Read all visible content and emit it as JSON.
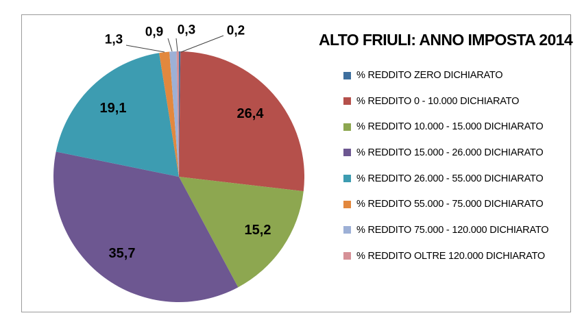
{
  "chart_data": {
    "type": "pie",
    "title": "ALTO FRIULI: ANNO IMPOSTA 2014",
    "legend_position": "right",
    "start_angle_deg": 0,
    "direction": "clockwise",
    "total": 99.1,
    "slices": [
      {
        "label": "% REDDITO ZERO DICHIARATO",
        "value": 0.2,
        "display": "0,2",
        "color": "#3E6F9E"
      },
      {
        "label": "% REDDITO 0 - 10.000 DICHIARATO",
        "value": 26.4,
        "display": "26,4",
        "color": "#B5504B"
      },
      {
        "label": "% REDDITO 10.000 - 15.000 DICHIARATO",
        "value": 15.2,
        "display": "15,2",
        "color": "#8DA750"
      },
      {
        "label": "% REDDITO 15.000 - 26.000 DICHIARATO",
        "value": 35.7,
        "display": "35,7",
        "color": "#6D5791"
      },
      {
        "label": "% REDDITO 26.000 - 55.000 DICHIARATO",
        "value": 19.1,
        "display": "19,1",
        "color": "#3D9CB1"
      },
      {
        "label": "% REDDITO 55.000 - 75.000 DICHIARATO",
        "value": 1.3,
        "display": "1,3",
        "color": "#E2883E"
      },
      {
        "label": "% REDDITO 75.000 - 120.000 DICHIARATO",
        "value": 0.9,
        "display": "0,9",
        "color": "#9DB0D6"
      },
      {
        "label": "% REDDITO OLTRE 120.000 DICHIARATO",
        "value": 0.3,
        "display": "0,3",
        "color": "#D69197"
      }
    ]
  }
}
